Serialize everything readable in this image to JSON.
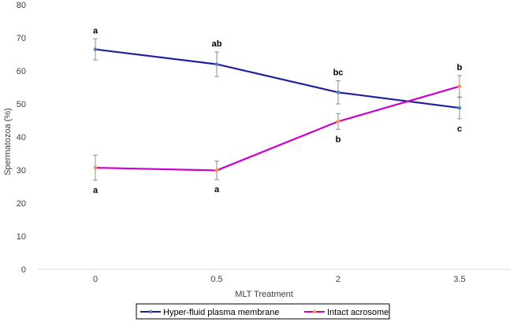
{
  "chart_data": {
    "type": "line",
    "xlabel": "MLT Treatment",
    "ylabel": "Spermatozoa (%)",
    "ylim": [
      0,
      80
    ],
    "yticks": [
      "0",
      "10",
      "20",
      "30",
      "40",
      "50",
      "60",
      "70",
      "80"
    ],
    "categories": [
      "0",
      "0.5",
      "2",
      "3.5"
    ],
    "grid": false,
    "legend_position": "bottom",
    "series": [
      {
        "name": "Hyper-fluid plasma membrane",
        "color": "#1f1f9e",
        "marker_color": "#4f81bd",
        "values": [
          66.5,
          62.0,
          53.5,
          48.8
        ],
        "errors": [
          3.2,
          3.7,
          3.5,
          3.3
        ],
        "labels": [
          "a",
          "ab",
          "bc",
          "c"
        ],
        "label_position": [
          "above",
          "above",
          "above",
          "below"
        ]
      },
      {
        "name": "Intact acrosome",
        "color": "#cc00cc",
        "marker_color": "#f79646",
        "values": [
          30.7,
          29.9,
          44.7,
          55.3
        ],
        "errors": [
          3.8,
          2.8,
          2.4,
          3.3
        ],
        "labels": [
          "a",
          "a",
          "b",
          "b"
        ],
        "label_position": [
          "below",
          "below",
          "below",
          "above"
        ]
      }
    ]
  }
}
